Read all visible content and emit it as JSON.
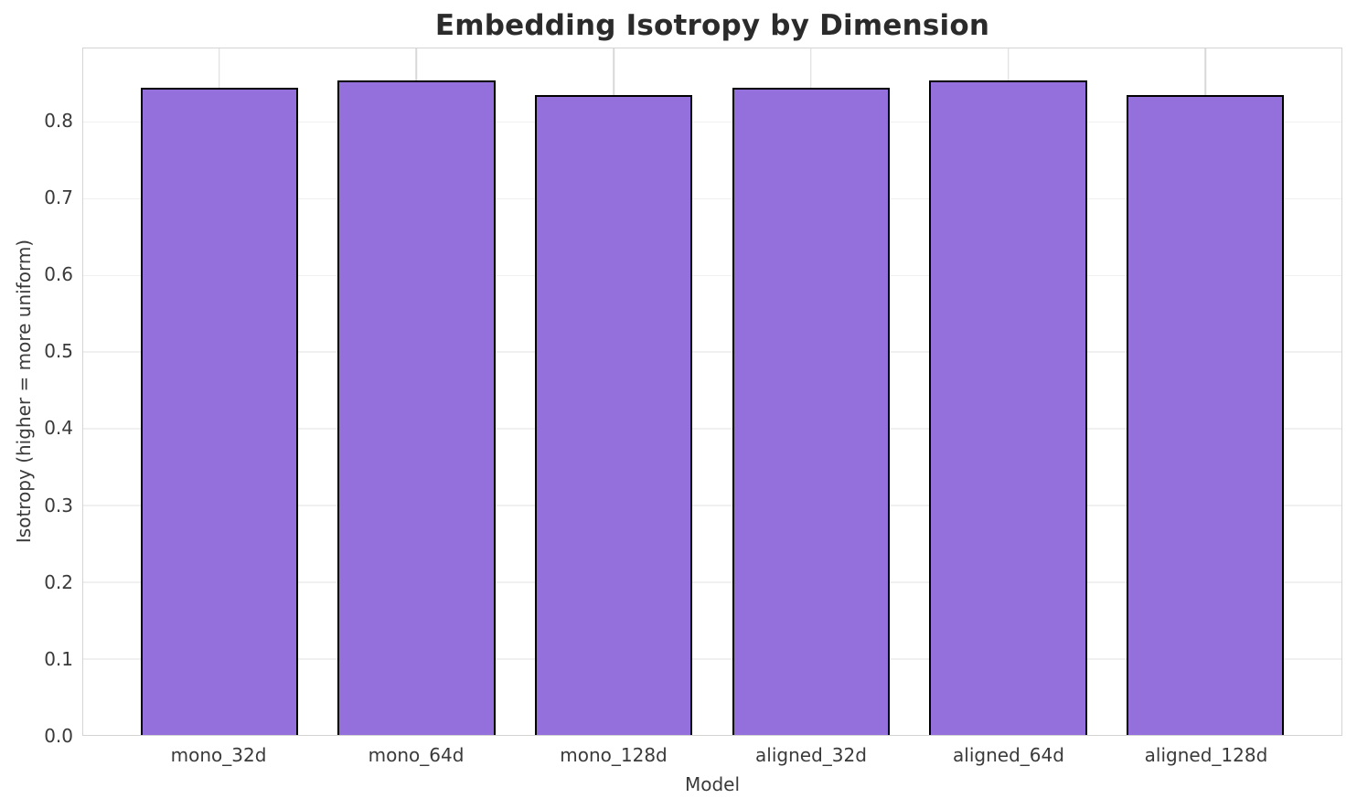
{
  "chart_data": {
    "type": "bar",
    "title": "Embedding Isotropy by Dimension",
    "xlabel": "Model",
    "ylabel": "Isotropy (higher = more uniform)",
    "categories": [
      "mono_32d",
      "mono_64d",
      "mono_128d",
      "aligned_32d",
      "aligned_64d",
      "aligned_128d"
    ],
    "values": [
      0.844,
      0.853,
      0.834,
      0.844,
      0.853,
      0.834
    ],
    "ylim": [
      0,
      0.895
    ],
    "ytick_labels": [
      "0.0",
      "0.1",
      "0.2",
      "0.3",
      "0.4",
      "0.5",
      "0.6",
      "0.7",
      "0.8"
    ],
    "grid": "both",
    "legend": "none",
    "bar_width_fraction": 0.8,
    "x_edge_padding": 0.69
  },
  "colors": {
    "background": "#ffffff",
    "bar_fill": "#9370db",
    "bar_edge": "#000000",
    "grid_horizontal": "#f0f0f0",
    "grid_vertical": "#d8d8d8",
    "spine": "#d4d4d4",
    "title_text": "#2b2b2b",
    "label_text": "#3a3a3a"
  }
}
